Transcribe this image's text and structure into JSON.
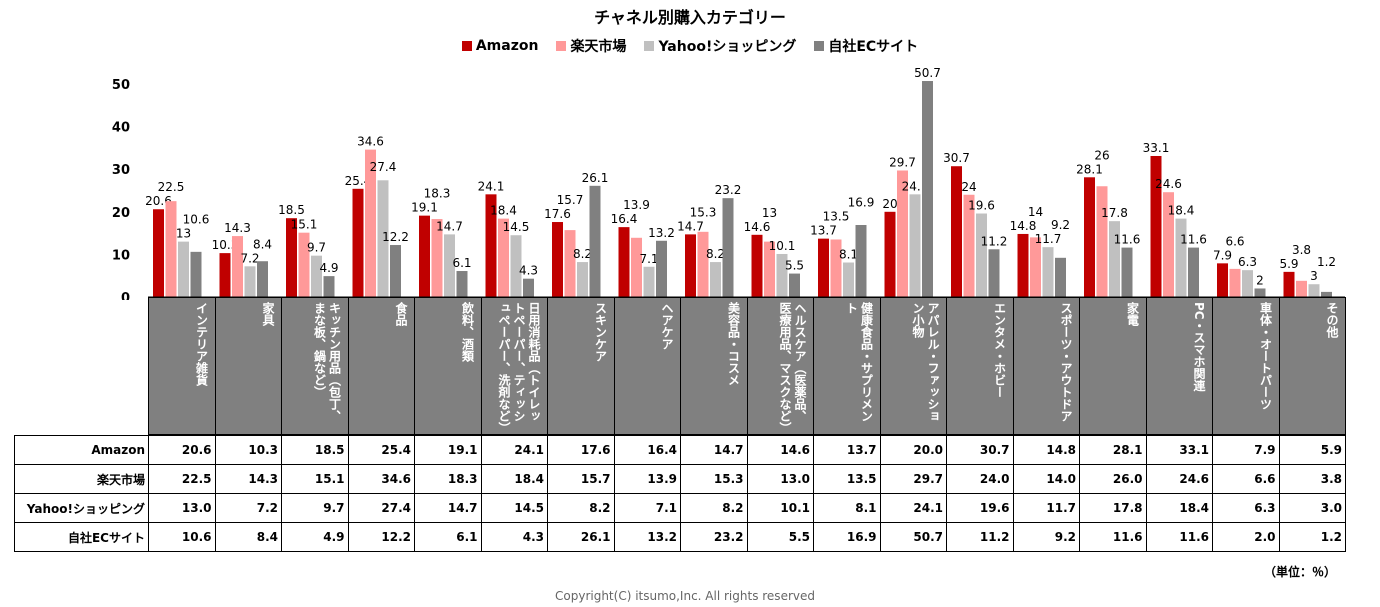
{
  "chart_data": {
    "type": "bar",
    "title": "チャネル別購入カテゴリー",
    "ylim": [
      0,
      50
    ],
    "yticks": [
      0,
      10,
      20,
      30,
      40,
      50
    ],
    "legend_position": "top",
    "categories": [
      "インテリア雑貨",
      "家具",
      "キッチン用品（包丁、まな板、鍋など）",
      "食品",
      "飲料、酒類",
      "日用消耗品（トイレットペーパー、ティッシュペーパー、洗剤など）",
      "スキンケア",
      "ヘアケア",
      "美容品・コスメ",
      "ヘルスケア（医薬品、医療用品、マスクなど）",
      "健康食品・サプリメント",
      "アパレル・ファッション小物",
      "エンタメ・ホビー",
      "スポーツ・アウトドア",
      "家電",
      "PC・スマホ関連",
      "車体・オートパーツ",
      "その他"
    ],
    "series": [
      {
        "name": "Amazon",
        "color": "#c00000",
        "values": [
          20.6,
          10.3,
          18.5,
          25.4,
          19.1,
          24.1,
          17.6,
          16.4,
          14.7,
          14.6,
          13.7,
          20.0,
          30.7,
          14.8,
          28.1,
          33.1,
          7.9,
          5.9
        ]
      },
      {
        "name": "楽天市場",
        "color": "#ff9999",
        "values": [
          22.5,
          14.3,
          15.1,
          34.6,
          18.3,
          18.4,
          15.7,
          13.9,
          15.3,
          13.0,
          13.5,
          29.7,
          24.0,
          14.0,
          26.0,
          24.6,
          6.6,
          3.8
        ]
      },
      {
        "name": "Yahoo!ショッピング",
        "color": "#c0c0c0",
        "values": [
          13.0,
          7.2,
          9.7,
          27.4,
          14.7,
          14.5,
          8.2,
          7.1,
          8.2,
          10.1,
          8.1,
          24.1,
          19.6,
          11.7,
          17.8,
          18.4,
          6.3,
          3.0
        ]
      },
      {
        "name": "自社ECサイト",
        "color": "#808080",
        "values": [
          10.6,
          8.4,
          4.9,
          12.2,
          6.1,
          4.3,
          26.1,
          13.2,
          23.2,
          5.5,
          16.9,
          50.7,
          11.2,
          9.2,
          11.6,
          11.6,
          2.0,
          1.2
        ]
      }
    ],
    "unit_note": "（単位：％）"
  },
  "copyright": "Copyright(C) itsumo,Inc. All rights reserved"
}
